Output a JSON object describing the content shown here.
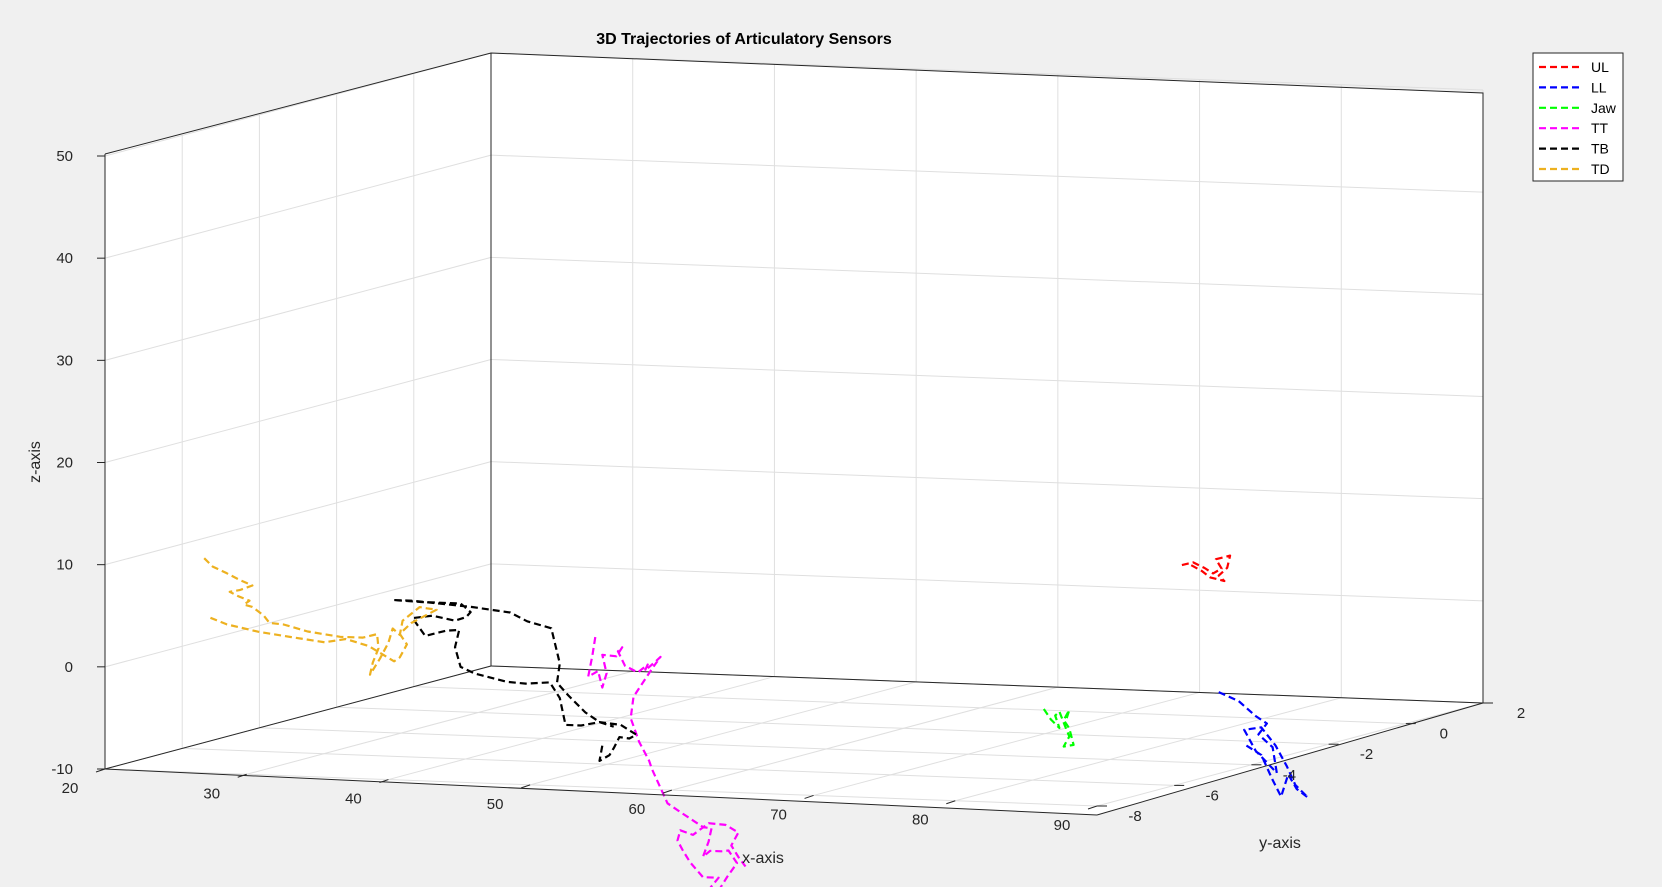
{
  "chart_data": {
    "type": "line",
    "title": "3D Trajectories of Articulatory Sensors",
    "xlabel": "x-axis",
    "ylabel": "y-axis",
    "zlabel": "z-axis",
    "xlim": [
      20,
      90
    ],
    "ylim": [
      -8,
      2
    ],
    "zlim": [
      -10,
      50
    ],
    "xticks": [
      "20",
      "30",
      "40",
      "50",
      "60",
      "70",
      "80",
      "90"
    ],
    "yticks": [
      "-8",
      "-6",
      "-4",
      "-2",
      "0",
      "2"
    ],
    "zticks": [
      "-10",
      "0",
      "10",
      "20",
      "30",
      "40",
      "50"
    ],
    "grid": true,
    "legend_position": "top-right",
    "line_style": "dashed",
    "series": [
      {
        "name": "UL",
        "color": "#ff0000",
        "points": [
          [
            74.2,
            0,
            4.7
          ],
          [
            75,
            0,
            5
          ],
          [
            75.8,
            0,
            4.5
          ],
          [
            76.4,
            0,
            4
          ],
          [
            77,
            0,
            4.5
          ],
          [
            76.6,
            0,
            5.4
          ],
          [
            77.6,
            0,
            5.8
          ],
          [
            77.4,
            0,
            4.6
          ],
          [
            76.8,
            0,
            3.8
          ],
          [
            77.2,
            0,
            3.3
          ],
          [
            76.2,
            0,
            3.6
          ],
          [
            75.6,
            0,
            4.2
          ],
          [
            74.6,
            0,
            4.9
          ]
        ]
      },
      {
        "name": "LL",
        "color": "#0000ff",
        "points": [
          [
            76.8,
            0,
            -7.6
          ],
          [
            78.2,
            0,
            -8.4
          ],
          [
            79.4,
            0,
            -9.8
          ],
          [
            80.2,
            0,
            -10.5
          ],
          [
            79.6,
            0,
            -11.6
          ],
          [
            80.6,
            0,
            -12.8
          ],
          [
            80.9,
            0,
            -15.3
          ],
          [
            79.4,
            0,
            -13.2
          ],
          [
            78.6,
            0,
            -11.2
          ],
          [
            79.8,
            0,
            -10.9
          ],
          [
            80.8,
            0,
            -12.6
          ],
          [
            81.6,
            0,
            -14.6
          ],
          [
            82.2,
            0,
            -16.4
          ],
          [
            83.1,
            0,
            -17.6
          ],
          [
            82.3,
            0,
            -16.8
          ],
          [
            81.7,
            0,
            -15.4
          ],
          [
            81.2,
            0,
            -17.6
          ],
          [
            80.6,
            0,
            -16.0
          ],
          [
            79.8,
            0,
            -13.6
          ],
          [
            78.6,
            0,
            -12.6
          ]
        ]
      },
      {
        "name": "Jaw",
        "color": "#00ff00",
        "points": [
          [
            80.8,
            -6,
            -3.0
          ],
          [
            81.3,
            -6,
            -4.0
          ],
          [
            81.9,
            -6,
            -4.8
          ],
          [
            81.6,
            -6,
            -3.6
          ],
          [
            81.9,
            -6,
            -3.2
          ],
          [
            82.3,
            -6,
            -4.6
          ],
          [
            82.6,
            -6,
            -5.6
          ],
          [
            82.2,
            -6,
            -6.6
          ],
          [
            82.9,
            -6,
            -6.4
          ],
          [
            82.6,
            -6,
            -4.8
          ],
          [
            82.2,
            -6,
            -4.0
          ],
          [
            82.6,
            -6,
            -3.0
          ],
          [
            82.3,
            -6,
            -4.3
          ]
        ]
      },
      {
        "name": "TT",
        "color": "#ff00ff",
        "points": [
          [
            43.7,
            -4,
            0.1
          ],
          [
            43.5,
            -4,
            -1.7
          ],
          [
            43.2,
            -4,
            -3.8
          ],
          [
            43.9,
            -4,
            -3.2
          ],
          [
            44.2,
            -4,
            -4.8
          ],
          [
            44.5,
            -4,
            -3.4
          ],
          [
            44.2,
            -4,
            -1.6
          ],
          [
            45.2,
            -4,
            -1.7
          ],
          [
            45.6,
            -4,
            -0.8
          ],
          [
            45.3,
            -4,
            -1.2
          ],
          [
            45.8,
            -4,
            -2.6
          ],
          [
            46.7,
            -4,
            -3.2
          ],
          [
            47.4,
            -4,
            -2.4
          ],
          [
            47.2,
            -4,
            -3.0
          ],
          [
            48.0,
            -4,
            -2.0
          ],
          [
            48.3,
            -4,
            -1.6
          ],
          [
            47.7,
            -4,
            -2.8
          ],
          [
            46.4,
            -4,
            -5.6
          ],
          [
            46.2,
            -4,
            -7.7
          ],
          [
            46.8,
            -4,
            -10.0
          ],
          [
            47.5,
            -4,
            -11.8
          ],
          [
            47.7,
            -4,
            -12.6
          ],
          [
            48.8,
            -4,
            -15.9
          ],
          [
            49.8,
            -4,
            -16.8
          ],
          [
            50.5,
            -4,
            -17.4
          ],
          [
            51.3,
            -4,
            -18.1
          ],
          [
            51.9,
            -4,
            -18.2
          ],
          [
            51.7,
            -4,
            -19.5
          ],
          [
            51.3,
            -4,
            -21.0
          ],
          [
            51.8,
            -4,
            -20.4
          ],
          [
            52.6,
            -4,
            -20.4
          ],
          [
            53.1,
            -4,
            -20.3
          ],
          [
            53.7,
            -4,
            -21.5
          ],
          [
            53.0,
            -4,
            -22.9
          ],
          [
            52.3,
            -4,
            -24.5
          ],
          [
            51.3,
            -4,
            -24.6
          ],
          [
            50.4,
            -4,
            -24.9
          ],
          [
            51.6,
            -4,
            -24.4
          ],
          [
            52.4,
            -4,
            -23.0
          ],
          [
            51.3,
            -4,
            -23.0
          ],
          [
            50.4,
            -4,
            -21.6
          ],
          [
            49.9,
            -4,
            -20.5
          ],
          [
            49.5,
            -4,
            -19.5
          ],
          [
            49.7,
            -4,
            -18.5
          ],
          [
            50.6,
            -4,
            -18.9
          ],
          [
            51.7,
            -4,
            -17.7
          ],
          [
            52.9,
            -4,
            -17.8
          ],
          [
            53.8,
            -4,
            -18.5
          ],
          [
            53.3,
            -4,
            -19.8
          ],
          [
            53.8,
            -4,
            -20.9
          ],
          [
            54.3,
            -4,
            -21.8
          ]
        ]
      },
      {
        "name": "TB",
        "color": "#000000",
        "points": [
          [
            44.2,
            -4,
            -10.5
          ],
          [
            44.0,
            -4,
            -12.0
          ],
          [
            44.7,
            -4,
            -11.4
          ],
          [
            45.0,
            -4,
            -10.7
          ],
          [
            45.4,
            -4,
            -9.6
          ],
          [
            46.1,
            -4,
            -9.7
          ],
          [
            46.6,
            -4,
            -9.3
          ],
          [
            45.5,
            -4,
            -8.4
          ],
          [
            44.0,
            -4,
            -8.2
          ],
          [
            42.7,
            -4,
            -8.6
          ],
          [
            41.6,
            -4,
            -8.6
          ],
          [
            41.2,
            -4,
            -6.0
          ],
          [
            40.5,
            -4,
            -4.5
          ],
          [
            38.8,
            -4,
            -4.7
          ],
          [
            37.5,
            -4,
            -4.6
          ],
          [
            35.2,
            -4,
            -3.9
          ],
          [
            34.2,
            -4,
            -3.3
          ],
          [
            33.8,
            -4,
            -1.4
          ],
          [
            34.1,
            -4,
            0.3
          ],
          [
            33.2,
            -4,
            0.2
          ],
          [
            31.7,
            -4,
            -0.4
          ],
          [
            30.8,
            -4,
            1.3
          ],
          [
            32.2,
            -4,
            1.6
          ],
          [
            33.8,
            -4,
            1.2
          ],
          [
            34.6,
            -4,
            1.6
          ],
          [
            34.9,
            -4,
            2.1
          ],
          [
            34.2,
            -4,
            2.9
          ],
          [
            31.4,
            -4,
            2.9
          ],
          [
            29.4,
            -4,
            3.0
          ],
          [
            30.8,
            -4,
            3.0
          ],
          [
            35.0,
            -4,
            2.6
          ],
          [
            37.7,
            -4,
            2.2
          ],
          [
            38.9,
            -4,
            1.4
          ],
          [
            40.6,
            -4,
            0.8
          ],
          [
            41.2,
            -4,
            -2.6
          ],
          [
            41.0,
            -4,
            -4.5
          ],
          [
            41.8,
            -4,
            -5.7
          ],
          [
            43.0,
            -4,
            -7.3
          ],
          [
            44.0,
            -4,
            -8.2
          ],
          [
            45.0,
            -4,
            -8.6
          ]
        ]
      },
      {
        "name": "TD",
        "color": "#edb120",
        "points": [
          [
            27.0,
            -8,
            11.0
          ],
          [
            27.6,
            -8,
            10.2
          ],
          [
            28.6,
            -8,
            9.6
          ],
          [
            29.5,
            -8,
            9.0
          ],
          [
            30.4,
            -8,
            8.5
          ],
          [
            29.5,
            -8,
            8.0
          ],
          [
            28.8,
            -8,
            7.8
          ],
          [
            29.4,
            -8,
            7.4
          ],
          [
            30.2,
            -8,
            7.0
          ],
          [
            29.8,
            -8,
            6.6
          ],
          [
            30.4,
            -8,
            6.4
          ],
          [
            31.2,
            -8,
            5.6
          ],
          [
            31.6,
            -8,
            4.9
          ],
          [
            32.6,
            -8,
            4.8
          ],
          [
            34.3,
            -8,
            4.2
          ],
          [
            36.6,
            -8,
            3.8
          ],
          [
            38.2,
            -8,
            3.8
          ],
          [
            39.2,
            -8,
            4.2
          ],
          [
            39.3,
            -8,
            2.8
          ],
          [
            38.9,
            -8,
            1.4
          ],
          [
            38.7,
            -8,
            0.2
          ],
          [
            39.4,
            -8,
            1.8
          ],
          [
            40.0,
            -8,
            3.4
          ],
          [
            40.3,
            -8,
            4.8
          ],
          [
            40.8,
            -8,
            4.2
          ],
          [
            41.0,
            -8,
            5.6
          ],
          [
            42.2,
            -8,
            7.0
          ],
          [
            42.7,
            -8,
            6.9
          ],
          [
            43.4,
            -8,
            6.8
          ],
          [
            42.5,
            -8,
            6.1
          ],
          [
            41.6,
            -8,
            5.4
          ],
          [
            40.8,
            -8,
            4.3
          ],
          [
            41.3,
            -8,
            3.3
          ],
          [
            40.8,
            -8,
            2.0
          ],
          [
            40.4,
            -8,
            1.6
          ],
          [
            38.6,
            -8,
            3.0
          ],
          [
            37.0,
            -8,
            3.6
          ],
          [
            35.5,
            -8,
            3.2
          ],
          [
            33.1,
            -8,
            3.6
          ],
          [
            30.8,
            -8,
            4.0
          ],
          [
            28.6,
            -8,
            4.6
          ],
          [
            27.4,
            -8,
            5.2
          ]
        ]
      }
    ]
  }
}
